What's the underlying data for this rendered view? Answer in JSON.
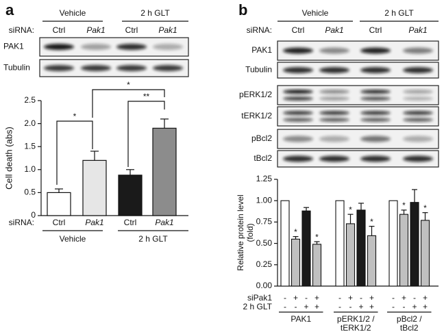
{
  "panels": [
    {
      "letter": "a",
      "groups": [
        "Vehicle",
        "2 h GLT"
      ],
      "sirna_label": "siRNA:",
      "lanes": [
        "Ctrl",
        "Pak1",
        "Ctrl",
        "Pak1"
      ],
      "blots": [
        "PAK1",
        "Tubulin"
      ]
    },
    {
      "letter": "b",
      "groups": [
        "Vehicle",
        "2 h GLT"
      ],
      "sirna_label": "siRNA:",
      "lanes": [
        "Ctrl",
        "Pak1",
        "Ctrl",
        "Pak1"
      ],
      "blots": [
        "PAK1",
        "Tubulin",
        "pERK1/2",
        "tERK1/2",
        "pBcl2",
        "tBcl2"
      ]
    }
  ],
  "chart_data": [
    {
      "type": "bar",
      "ylabel": "Cell death (abs)",
      "x_prefix": "siRNA:",
      "categories": [
        "Ctrl",
        "Pak1",
        "Ctrl",
        "Pak1"
      ],
      "groups": [
        "Vehicle",
        "2 h GLT"
      ],
      "values": [
        0.5,
        1.2,
        0.88,
        1.9
      ],
      "errors": [
        0.08,
        0.2,
        0.12,
        0.2
      ],
      "colors": [
        "#ffffff",
        "#e6e6e6",
        "#1a1a1a",
        "#8c8c8c"
      ],
      "ylim": [
        0,
        2.5
      ],
      "yticks": [
        0,
        0.5,
        {
          "value": 1,
          "label": "1.0"
        },
        1.5,
        {
          "value": 2,
          "label": "2.0"
        },
        2.5
      ],
      "annotations": [
        "*",
        "**",
        "*"
      ]
    },
    {
      "type": "grouped_bar",
      "ylabel": [
        "Relative protein level",
        "(fold)"
      ],
      "categories": [
        [
          "PAK1"
        ],
        [
          "pERK1/2 /",
          "tERK1/2"
        ],
        [
          "pBcl2 /",
          "tBcl2"
        ]
      ],
      "conditions": [
        {
          "label": "siPak1",
          "signs": [
            "-",
            "+",
            "-",
            "+"
          ]
        },
        {
          "label": "2 h GLT",
          "signs": [
            "-",
            "-",
            "+",
            "+"
          ]
        }
      ],
      "series": [
        {
          "color": "#ffffff",
          "values": [
            1,
            1,
            1
          ]
        },
        {
          "color": "#c0c0c0",
          "values": [
            0.55,
            0.73,
            0.84
          ],
          "errors": [
            0.03,
            0.11,
            0.05
          ],
          "sig": [
            "*",
            "*",
            "*"
          ]
        },
        {
          "color": "#1a1a1a",
          "values": [
            0.88,
            0.89,
            0.98
          ],
          "errors": [
            0.04,
            0.08,
            0.15
          ]
        },
        {
          "color": "#c0c0c0",
          "values": [
            0.49,
            0.59,
            0.77
          ],
          "errors": [
            0.03,
            0.11,
            0.09
          ],
          "sig": [
            "*",
            "*",
            "*"
          ]
        }
      ],
      "ylim": [
        0,
        1.25
      ],
      "yticks": [
        {
          "value": 0,
          "label": "0.00"
        },
        0.25,
        {
          "value": 0.5,
          "label": "0.50"
        },
        0.75,
        {
          "value": 1,
          "label": "1.00"
        },
        1.25
      ]
    }
  ]
}
